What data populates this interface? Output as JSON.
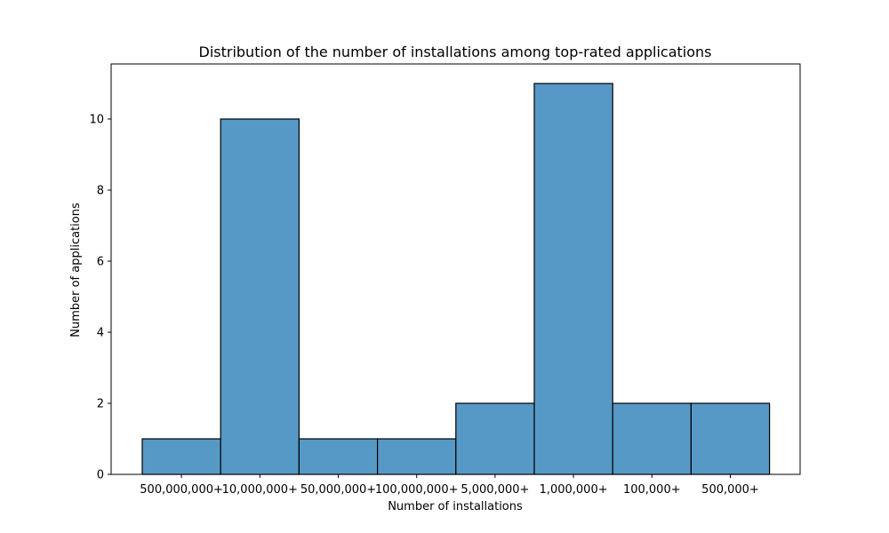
{
  "chart_data": {
    "type": "bar",
    "title": "Distribution of the number of installations among top-rated applications",
    "xlabel": "Number of installations",
    "ylabel": "Number of applications",
    "categories": [
      "500,000,000+",
      "10,000,000+",
      "50,000,000+",
      "100,000,000+",
      "5,000,000+",
      "1,000,000+",
      "100,000+",
      "500,000+"
    ],
    "values": [
      1,
      10,
      1,
      1,
      2,
      11,
      2,
      2
    ],
    "ylim": [
      0,
      11.55
    ],
    "yticks": [
      0,
      2,
      4,
      6,
      8,
      10
    ],
    "grid": false,
    "colors": {
      "bar_fill": "#5799c6",
      "bar_edge": "#000000",
      "axis": "#000000",
      "background": "#ffffff"
    }
  }
}
